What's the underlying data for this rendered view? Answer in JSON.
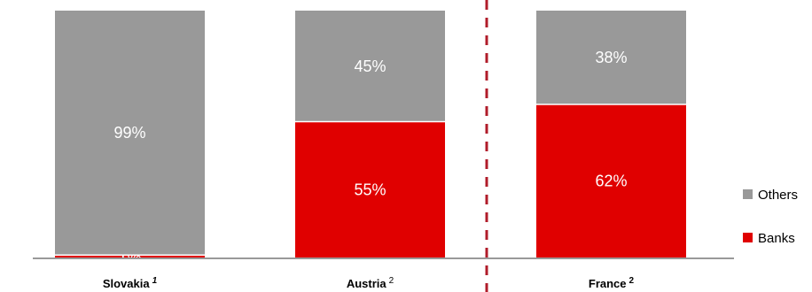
{
  "chart_data": {
    "type": "bar",
    "stacked": true,
    "percent": true,
    "categories": [
      "Slovakia",
      "Austria",
      "France"
    ],
    "category_footnotes": [
      "1",
      "2",
      "2"
    ],
    "series": [
      {
        "name": "Banks",
        "values": [
          1,
          55,
          62
        ],
        "labels": [
          "1%",
          "55%",
          "62%"
        ],
        "color": "#e00000"
      },
      {
        "name": "Others",
        "values": [
          99,
          45,
          38
        ],
        "labels": [
          "99%",
          "45%",
          "38%"
        ],
        "color": "#999999"
      }
    ],
    "ylim": [
      0,
      100
    ],
    "grid": false,
    "legend_position": "right",
    "divider": "dashed red vertical line between Austria and France"
  }
}
